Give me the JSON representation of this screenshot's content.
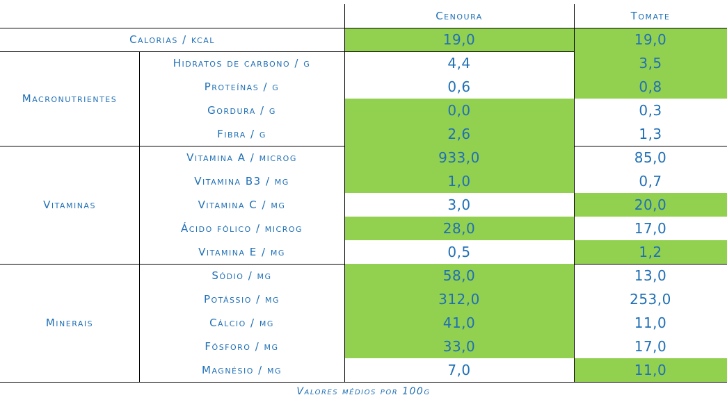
{
  "header": {
    "col1": "Cenoura",
    "col2": "Tomate"
  },
  "calorias": {
    "label": "Calorias / kcal",
    "cenoura": "19,0",
    "tomate": "19,0",
    "cenoura_best": true,
    "tomate_best": true
  },
  "groups": [
    {
      "name": "Macronutrientes",
      "rows": [
        {
          "label": "Hidratos de carbono / g",
          "cenoura": "4,4",
          "tomate": "3,5",
          "cenoura_best": false,
          "tomate_best": true
        },
        {
          "label": "Proteínas / g",
          "cenoura": "0,6",
          "tomate": "0,8",
          "cenoura_best": false,
          "tomate_best": true
        },
        {
          "label": "Gordura / g",
          "cenoura": "0,0",
          "tomate": "0,3",
          "cenoura_best": true,
          "tomate_best": false
        },
        {
          "label": "Fibra / g",
          "cenoura": "2,6",
          "tomate": "1,3",
          "cenoura_best": true,
          "tomate_best": false
        }
      ]
    },
    {
      "name": "Vitaminas",
      "rows": [
        {
          "label": "Vitamina A / microg",
          "cenoura": "933,0",
          "tomate": "85,0",
          "cenoura_best": true,
          "tomate_best": false
        },
        {
          "label": "Vitamina B3 / mg",
          "cenoura": "1,0",
          "tomate": "0,7",
          "cenoura_best": true,
          "tomate_best": false
        },
        {
          "label": "Vitamina C / mg",
          "cenoura": "3,0",
          "tomate": "20,0",
          "cenoura_best": false,
          "tomate_best": true
        },
        {
          "label": "Ácido fólico / microg",
          "cenoura": "28,0",
          "tomate": "17,0",
          "cenoura_best": true,
          "tomate_best": false
        },
        {
          "label": "Vitamina E / mg",
          "cenoura": "0,5",
          "tomate": "1,2",
          "cenoura_best": false,
          "tomate_best": true
        }
      ]
    },
    {
      "name": "Minerais",
      "rows": [
        {
          "label": "Sódio / mg",
          "cenoura": "58,0",
          "tomate": "13,0",
          "cenoura_best": true,
          "tomate_best": false
        },
        {
          "label": "Potássio / mg",
          "cenoura": "312,0",
          "tomate": "253,0",
          "cenoura_best": true,
          "tomate_best": false
        },
        {
          "label": "Cálcio / mg",
          "cenoura": "41,0",
          "tomate": "11,0",
          "cenoura_best": true,
          "tomate_best": false
        },
        {
          "label": "Fósforo / mg",
          "cenoura": "33,0",
          "tomate": "17,0",
          "cenoura_best": true,
          "tomate_best": false
        },
        {
          "label": "Magnésio / mg",
          "cenoura": "7,0",
          "tomate": "11,0",
          "cenoura_best": false,
          "tomate_best": true
        }
      ]
    }
  ],
  "caption": "Valores médios por 100g",
  "colors": {
    "text": "#1f6fb5",
    "highlight": "#92d050",
    "rule": "#000000"
  }
}
